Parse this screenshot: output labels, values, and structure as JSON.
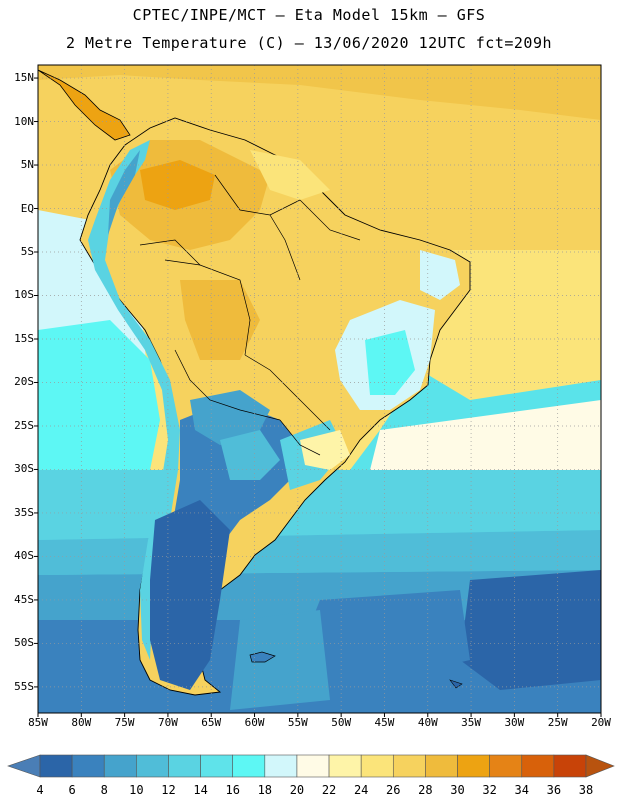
{
  "title": {
    "line1": "CPTEC/INPE/MCT –  Eta Model 15km – GFS",
    "line2": "2 Metre Temperature (C) – 13/06/2020 12UTC fct=209h"
  },
  "map": {
    "lat_labels": [
      "15N",
      "10N",
      "5N",
      "EQ",
      "5S",
      "10S",
      "15S",
      "20S",
      "25S",
      "30S",
      "35S",
      "40S",
      "45S",
      "50S",
      "55S"
    ],
    "lon_labels": [
      "85W",
      "80W",
      "75W",
      "70W",
      "65W",
      "60W",
      "55W",
      "50W",
      "45W",
      "40W",
      "35W",
      "30W",
      "25W",
      "20W"
    ],
    "lat_range": [
      -58,
      16.5
    ],
    "lon_range": [
      -85,
      -20
    ],
    "gridlines": "dotted",
    "region": "South America"
  },
  "colorbar": {
    "labels": [
      "4",
      "6",
      "8",
      "10",
      "12",
      "14",
      "16",
      "18",
      "20",
      "22",
      "24",
      "26",
      "28",
      "30",
      "32",
      "34",
      "36",
      "38"
    ],
    "colors": [
      "#4a7eb6",
      "#2b65a8",
      "#3a82be",
      "#45a3cc",
      "#50bdd8",
      "#5ad3e2",
      "#5fe3ea",
      "#5df7f4",
      "#d2f7fb",
      "#fffbe6",
      "#fef4a8",
      "#fbe47a",
      "#f6d25e",
      "#efbb3c",
      "#eda312",
      "#e58316",
      "#d8610a",
      "#c84308",
      "#b8530f"
    ]
  },
  "temperature_zones": [
    {
      "name": "caribbean-and-north-atlantic",
      "temp_c": 28
    },
    {
      "name": "amazon-basin",
      "temp_c": 28
    },
    {
      "name": "andes",
      "temp_c": 14
    },
    {
      "name": "brazilian-highlands",
      "temp_c": 18
    },
    {
      "name": "pacific-coastal-band",
      "temp_c": 18
    },
    {
      "name": "southern-argentina",
      "temp_c": 4
    },
    {
      "name": "south-atlantic-high-latitudes",
      "temp_c": 6
    }
  ]
}
